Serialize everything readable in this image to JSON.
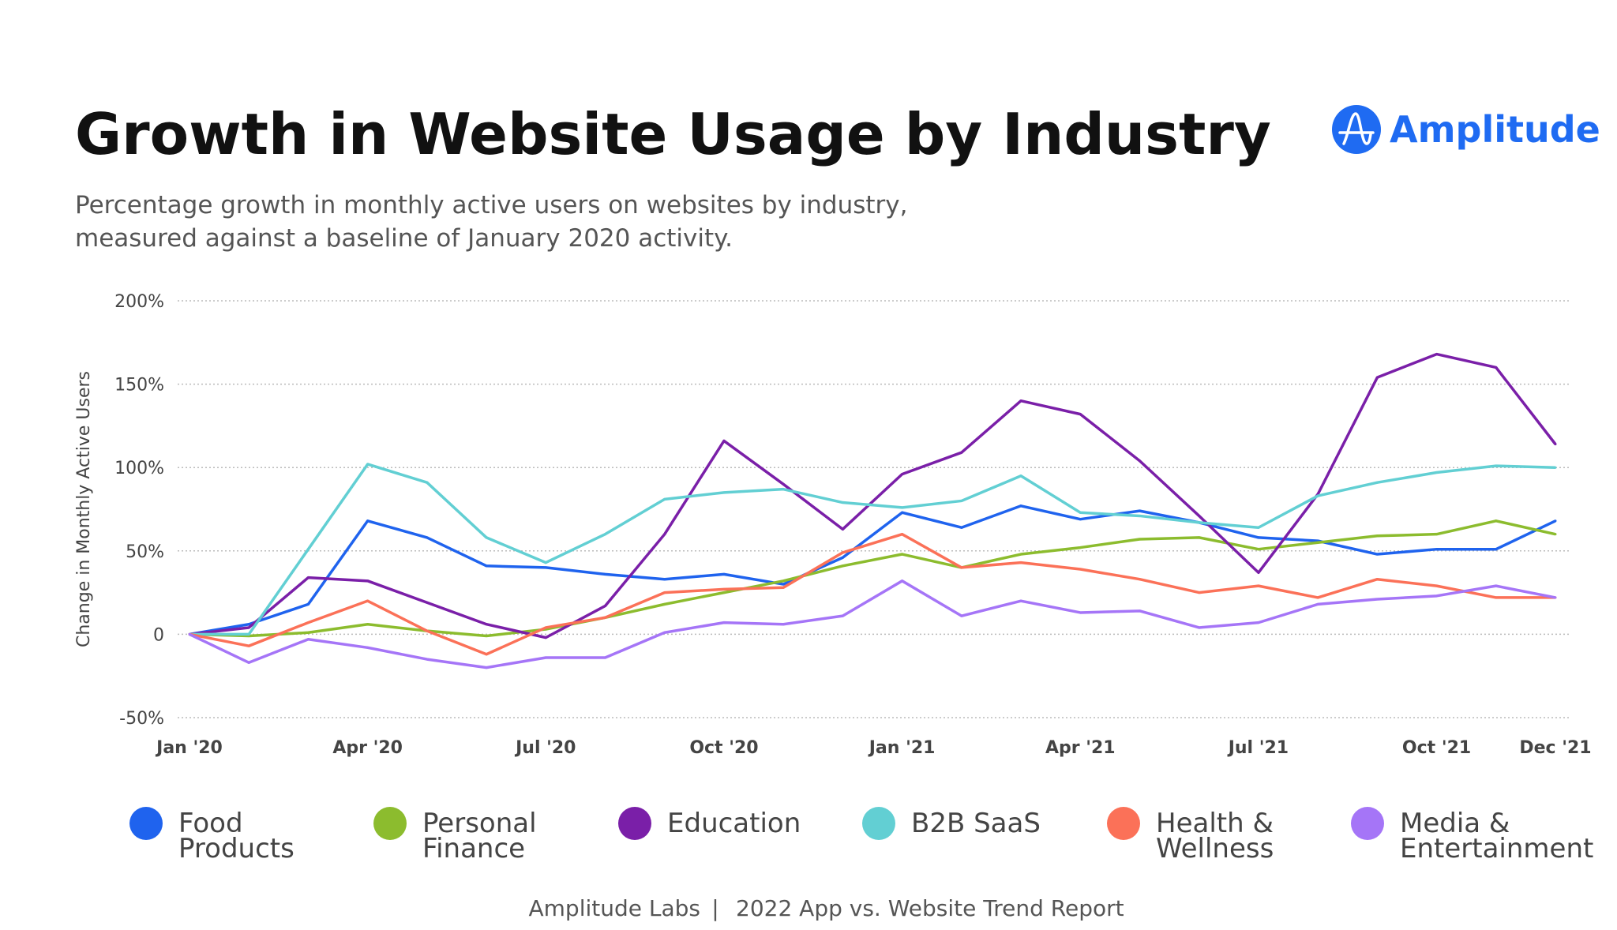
{
  "header": {
    "title": "Growth in Website Usage by Industry",
    "subtitle_line1": "Percentage growth in monthly active users on websites by industry,",
    "subtitle_line2": "measured against a baseline of January 2020 activity.",
    "logo_text": "Amplitude",
    "brand_color": "#1f6bf2"
  },
  "footer": {
    "left": "Amplitude Labs",
    "separator": "|",
    "right": "2022 App vs. Website Trend Report"
  },
  "chart_data": {
    "type": "line",
    "title": "Growth in Website Usage by Industry",
    "ylabel": "Change in Monthly Active Users",
    "xlabel": "",
    "ylim": [
      -50,
      200
    ],
    "grid": true,
    "legend_placement": "bottom",
    "y_ticks": [
      "200%",
      "150%",
      "100%",
      "50%",
      "0",
      "-50%"
    ],
    "y_tick_values": [
      200,
      150,
      100,
      50,
      0,
      -50
    ],
    "x": [
      "Jan '20",
      "Feb '20",
      "Mar '20",
      "Apr '20",
      "May '20",
      "Jun '20",
      "Jul '20",
      "Aug '20",
      "Sep '20",
      "Oct '20",
      "Nov '20",
      "Dec '20",
      "Jan '21",
      "Feb '21",
      "Mar '21",
      "Apr '21",
      "May '21",
      "Jun '21",
      "Jul '21",
      "Aug '21",
      "Sep '21",
      "Oct '21",
      "Nov '21",
      "Dec '21"
    ],
    "x_tick_labels": [
      {
        "index": 0,
        "label": "Jan '20"
      },
      {
        "index": 3,
        "label": "Apr '20"
      },
      {
        "index": 6,
        "label": "Jul '20"
      },
      {
        "index": 9,
        "label": "Oct '20"
      },
      {
        "index": 12,
        "label": "Jan '21"
      },
      {
        "index": 15,
        "label": "Apr '21"
      },
      {
        "index": 18,
        "label": "Jul '21"
      },
      {
        "index": 21,
        "label": "Oct '21"
      },
      {
        "index": 23,
        "label": "Dec '21"
      }
    ],
    "series": [
      {
        "name": "Food Products",
        "legend_lines": [
          "Food",
          "Products"
        ],
        "color": "#1f63ee",
        "values": [
          0,
          6,
          18,
          68,
          58,
          41,
          40,
          36,
          33,
          36,
          30,
          46,
          73,
          64,
          77,
          69,
          74,
          67,
          58,
          56,
          48,
          51,
          51,
          68
        ]
      },
      {
        "name": "Personal Finance",
        "legend_lines": [
          "Personal",
          "Finance"
        ],
        "color": "#8cbc2e",
        "values": [
          0,
          -1,
          1,
          6,
          2,
          -1,
          3,
          10,
          18,
          25,
          32,
          41,
          48,
          40,
          48,
          52,
          57,
          58,
          51,
          55,
          59,
          60,
          68,
          60
        ]
      },
      {
        "name": "Education",
        "legend_lines": [
          "Education"
        ],
        "color": "#7a1fa8",
        "values": [
          0,
          4,
          34,
          32,
          19,
          6,
          -2,
          17,
          60,
          116,
          90,
          63,
          96,
          109,
          140,
          132,
          104,
          71,
          37,
          84,
          154,
          168,
          160,
          114
        ]
      },
      {
        "name": "B2B SaaS",
        "legend_lines": [
          "B2B SaaS"
        ],
        "color": "#62cfd3",
        "values": [
          0,
          0,
          51,
          102,
          91,
          58,
          43,
          60,
          81,
          85,
          87,
          79,
          76,
          80,
          95,
          73,
          71,
          67,
          64,
          83,
          91,
          97,
          101,
          100
        ]
      },
      {
        "name": "Health & Wellness",
        "legend_lines": [
          "Health &",
          "Wellness"
        ],
        "color": "#fb7158",
        "values": [
          0,
          -7,
          7,
          20,
          2,
          -12,
          4,
          10,
          25,
          27,
          28,
          49,
          60,
          40,
          43,
          39,
          33,
          25,
          29,
          22,
          33,
          29,
          22,
          22
        ]
      },
      {
        "name": "Media & Entertainment",
        "legend_lines": [
          "Media &",
          "Entertainment"
        ],
        "color": "#a575f7",
        "values": [
          0,
          -17,
          -3,
          -8,
          -15,
          -20,
          -14,
          -14,
          1,
          7,
          6,
          11,
          32,
          11,
          20,
          13,
          14,
          4,
          7,
          18,
          21,
          23,
          29,
          22
        ]
      }
    ]
  }
}
